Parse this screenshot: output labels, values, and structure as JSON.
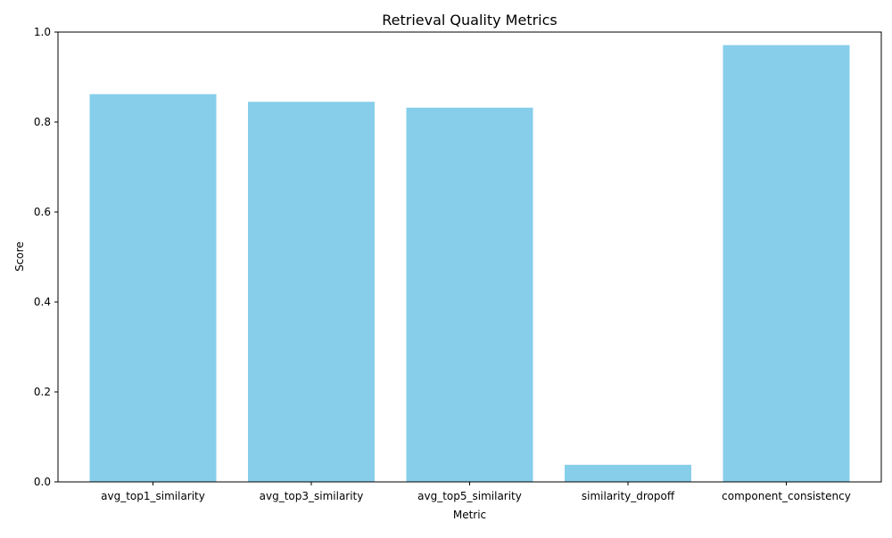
{
  "chart_data": {
    "type": "bar",
    "title": "Retrieval Quality Metrics",
    "xlabel": "Metric",
    "ylabel": "Score",
    "categories": [
      "avg_top1_similarity",
      "avg_top3_similarity",
      "avg_top5_similarity",
      "similarity_dropoff",
      "component_consistency"
    ],
    "values": [
      0.862,
      0.845,
      0.832,
      0.038,
      0.971
    ],
    "ylim": [
      0.0,
      1.0
    ],
    "yticks": [
      "0.0",
      "0.2",
      "0.4",
      "0.6",
      "0.8",
      "1.0"
    ],
    "grid": false,
    "legend": "none",
    "colors": {
      "bar": "#87CEEB",
      "axis": "#000000",
      "text": "#000000"
    }
  }
}
